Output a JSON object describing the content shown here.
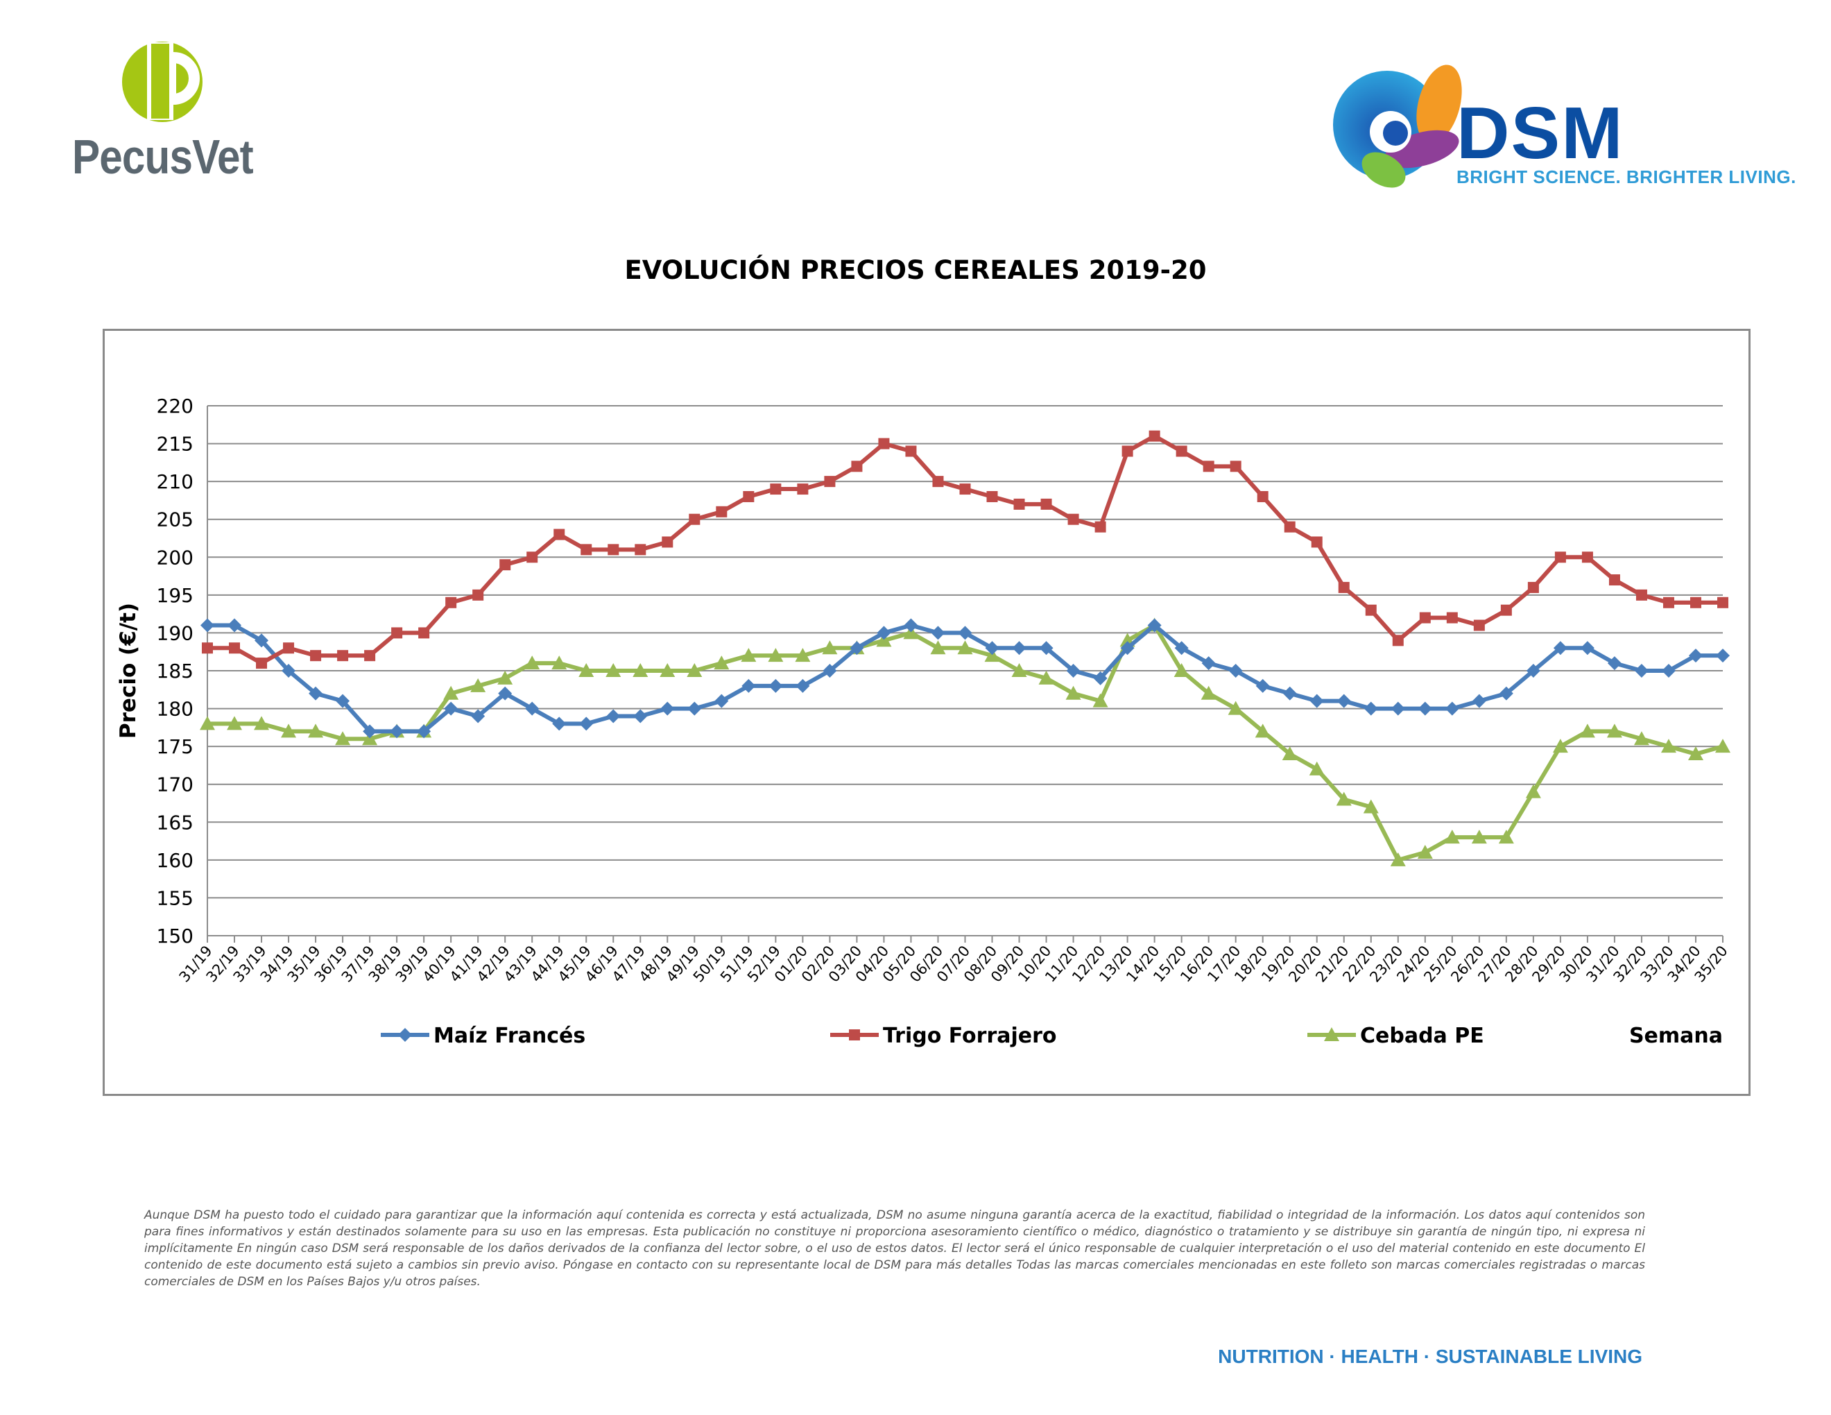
{
  "header": {
    "pecusvet_name": "PecusVet",
    "dsm_name": "DSM",
    "dsm_tagline": "BRIGHT SCIENCE. BRIGHTER LIVING."
  },
  "colors": {
    "maiz": "#4a7ebb",
    "trigo": "#be4b48",
    "cebada": "#98b954",
    "pecus_green": "#a5c614",
    "dsm_blue": "#0b4ea2"
  },
  "chart_data": {
    "type": "line",
    "title": "EVOLUCIÓN PRECIOS CEREALES 2019-20",
    "ylabel": "Precio (€/t)",
    "xlabel": "Semana",
    "ylim": [
      150,
      220
    ],
    "ytick_step": 5,
    "grid": true,
    "legend_position": "bottom",
    "categories": [
      "31/19",
      "32/19",
      "33/19",
      "34/19",
      "35/19",
      "36/19",
      "37/19",
      "38/19",
      "39/19",
      "40/19",
      "41/19",
      "42/19",
      "43/19",
      "44/19",
      "45/19",
      "46/19",
      "47/19",
      "48/19",
      "49/19",
      "50/19",
      "51/19",
      "52/19",
      "01/20",
      "02/20",
      "03/20",
      "04/20",
      "05/20",
      "06/20",
      "07/20",
      "08/20",
      "09/20",
      "10/20",
      "11/20",
      "12/20",
      "13/20",
      "14/20",
      "15/20",
      "16/20",
      "17/20",
      "18/20",
      "19/20",
      "20/20",
      "21/20",
      "22/20",
      "23/20",
      "24/20",
      "25/20",
      "26/20",
      "27/20",
      "28/20",
      "29/20",
      "30/20",
      "31/20",
      "32/20",
      "33/20",
      "34/20",
      "35/20"
    ],
    "series": [
      {
        "name": "Maíz Francés",
        "color": "#4a7ebb",
        "marker": "diamond",
        "values": [
          191,
          191,
          189,
          185,
          182,
          181,
          177,
          177,
          177,
          180,
          179,
          182,
          180,
          178,
          178,
          179,
          179,
          180,
          180,
          181,
          183,
          183,
          183,
          185,
          188,
          190,
          191,
          190,
          190,
          188,
          188,
          188,
          185,
          184,
          188,
          191,
          188,
          186,
          185,
          183,
          182,
          181,
          181,
          180,
          180,
          180,
          180,
          181,
          182,
          185,
          188,
          188,
          186,
          185,
          185,
          187,
          187
        ]
      },
      {
        "name": "Trigo Forrajero",
        "color": "#be4b48",
        "marker": "square",
        "values": [
          188,
          188,
          186,
          188,
          187,
          187,
          187,
          190,
          190,
          194,
          195,
          199,
          200,
          203,
          201,
          201,
          201,
          202,
          205,
          206,
          208,
          209,
          209,
          210,
          212,
          215,
          214,
          210,
          209,
          208,
          207,
          207,
          205,
          204,
          214,
          216,
          214,
          212,
          212,
          208,
          204,
          202,
          196,
          193,
          189,
          192,
          192,
          191,
          193,
          196,
          200,
          200,
          197,
          195,
          194,
          194,
          194
        ]
      },
      {
        "name": "Cebada PE",
        "color": "#98b954",
        "marker": "triangle",
        "values": [
          178,
          178,
          178,
          177,
          177,
          176,
          176,
          177,
          177,
          182,
          183,
          184,
          186,
          186,
          185,
          185,
          185,
          185,
          185,
          186,
          187,
          187,
          187,
          188,
          188,
          189,
          190,
          188,
          188,
          187,
          185,
          184,
          182,
          181,
          189,
          191,
          185,
          182,
          180,
          177,
          174,
          172,
          168,
          167,
          160,
          161,
          163,
          163,
          163,
          169,
          175,
          177,
          177,
          176,
          175,
          174,
          175
        ]
      }
    ]
  },
  "disclaimer": "Aunque DSM ha puesto todo el cuidado para garantizar que la información aquí contenida es correcta y está actualizada, DSM no asume ninguna garantía acerca de la exactitud, fiabilidad o integridad de la información. Los datos aquí contenidos son para fines informativos y están destinados solamente para su uso en las empresas. Esta publicación no constituye ni proporciona asesoramiento científico o médico, diagnóstico o tratamiento y se distribuye sin garantía de ningún tipo, ni expresa ni implícitamente En ningún caso DSM será responsable de los daños derivados de la confianza del lector sobre, o el uso de estos datos. El lector será el único responsable de cualquier interpretación o el uso del material contenido en este documento El contenido de este documento está sujeto a cambios sin previo aviso. Póngase en contacto con su representante local de DSM para más detalles Todas las marcas comerciales mencionadas en este folleto son marcas comerciales registradas o marcas comerciales de DSM en los Países Bajos y/u otros países.",
  "footer_tagline": "NUTRITION · HEALTH · SUSTAINABLE LIVING"
}
